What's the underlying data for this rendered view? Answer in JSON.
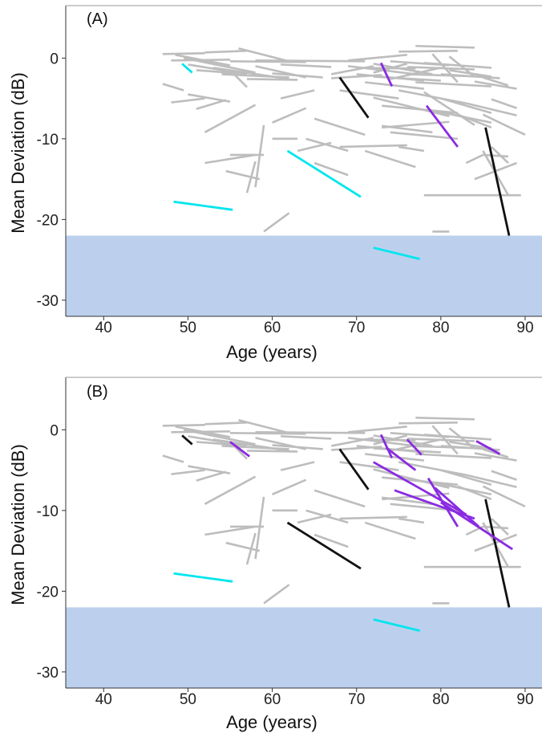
{
  "colors": {
    "gray": "#bdbdbd",
    "cyan": "#00e5ee",
    "purple": "#8a2be2",
    "black": "#111111",
    "band": "#bcd0ee"
  },
  "chart_data": [
    {
      "type": "line",
      "panel_label": "(A)",
      "xlabel": "Age (years)",
      "ylabel": "Mean Deviation (dB)",
      "xlim": [
        35.5,
        92
      ],
      "ylim": [
        -32,
        6.5
      ],
      "xticks": [
        "40",
        "50",
        "60",
        "70",
        "80",
        "90"
      ],
      "yticks": [
        "0",
        "-10",
        "-20",
        "-30"
      ],
      "shaded_band": [
        -32,
        -22
      ],
      "gray_segments": [
        [
          47,
          0.5,
          52,
          0.6
        ],
        [
          48,
          -0.3,
          55,
          -0.2
        ],
        [
          48.5,
          0.4,
          55,
          -0.9
        ],
        [
          49.5,
          0,
          58,
          -1.8
        ],
        [
          50,
          -0.8,
          57,
          -2
        ],
        [
          51,
          -1.5,
          56,
          -1.9
        ],
        [
          52,
          0.7,
          57,
          0.9
        ],
        [
          53,
          -1.2,
          62,
          -2.6
        ],
        [
          54,
          -2,
          62,
          -2.4
        ],
        [
          55,
          -0.4,
          64,
          -0.5
        ],
        [
          56,
          1.2,
          62,
          -0.4
        ],
        [
          57,
          -2.6,
          63,
          -2.7
        ],
        [
          58,
          -0.3,
          71,
          -0.4
        ],
        [
          58,
          -1,
          64,
          -2.4
        ],
        [
          60,
          -1.9,
          66,
          -2.4
        ],
        [
          61,
          -0.8,
          67,
          -1.1
        ],
        [
          47,
          -3.2,
          49.5,
          -4
        ],
        [
          48,
          -5.5,
          52,
          -5
        ],
        [
          50,
          -4.5,
          55,
          -5.4
        ],
        [
          51,
          -6.3,
          54.5,
          -5.2
        ],
        [
          55,
          -1.5,
          57,
          -3.6
        ],
        [
          52,
          -9.2,
          58,
          -5.8
        ],
        [
          52,
          -13,
          58,
          -12
        ],
        [
          54.5,
          -14,
          58.5,
          -15
        ],
        [
          55,
          -12,
          59,
          -12
        ],
        [
          57,
          -16.7,
          58,
          -12.8
        ],
        [
          58,
          -16,
          59,
          -8.3
        ],
        [
          60,
          -10,
          63,
          -10
        ],
        [
          59,
          -21.5,
          62,
          -19.2
        ],
        [
          60,
          -8,
          64,
          -6.2
        ],
        [
          61,
          -5,
          65,
          -4
        ],
        [
          63,
          -11.5,
          67,
          -10.5
        ],
        [
          64,
          -10,
          69,
          -11.5
        ],
        [
          65,
          -7.5,
          71,
          -9.5
        ],
        [
          67,
          -2,
          72,
          -1
        ],
        [
          67,
          -2.5,
          73,
          -2.1
        ],
        [
          68,
          -4,
          75,
          -5
        ],
        [
          69,
          -1,
          77,
          -2
        ],
        [
          69,
          -0.3,
          76,
          0.4
        ],
        [
          70,
          -1.2,
          77,
          -1.3
        ],
        [
          70,
          -2,
          78,
          -2.8
        ],
        [
          71,
          -3,
          78,
          -3.8
        ],
        [
          72,
          -0.7,
          79,
          -2
        ],
        [
          72,
          -2.3,
          80,
          -2.8
        ],
        [
          72,
          -1.8,
          76,
          -0.7
        ],
        [
          72,
          -4.9,
          81,
          -7.2
        ],
        [
          73,
          -5.9,
          82,
          -6.8
        ],
        [
          74,
          -2.6,
          80,
          -1.2
        ],
        [
          74,
          -0.4,
          81,
          -0.9
        ],
        [
          75,
          0.8,
          82,
          0.9
        ],
        [
          75,
          -4,
          83,
          -5.6
        ],
        [
          76,
          -2,
          85,
          -2.3
        ],
        [
          76,
          -1.1,
          84,
          -1.4
        ],
        [
          77,
          -3,
          86,
          -3.5
        ],
        [
          73,
          -8.4,
          79,
          -9.2
        ],
        [
          74,
          -9.2,
          82,
          -10
        ],
        [
          77,
          1.5,
          84,
          1.3
        ],
        [
          78,
          -0.6,
          86,
          -1.2
        ],
        [
          78,
          -4.2,
          84,
          -8.3
        ],
        [
          79,
          0.5,
          82,
          -3
        ],
        [
          79,
          -6.5,
          86,
          -8
        ],
        [
          80,
          -2,
          87,
          -2.5
        ],
        [
          80,
          -5,
          86,
          -6.8
        ],
        [
          81,
          -1.5,
          86,
          -2.3
        ],
        [
          81,
          0.2,
          84,
          -2.3
        ],
        [
          82,
          -7,
          86,
          -8.6
        ],
        [
          83,
          -5.6,
          89,
          -7.1
        ],
        [
          84,
          -2.9,
          89,
          -3.8
        ],
        [
          85,
          -7,
          90,
          -9.5
        ],
        [
          85,
          -2.4,
          88,
          -3.4
        ],
        [
          86,
          -5.1,
          89,
          -6.2
        ],
        [
          86,
          -11,
          88,
          -13
        ],
        [
          78,
          -17,
          89.5,
          -17
        ],
        [
          85,
          -12,
          88,
          -12.2
        ],
        [
          84,
          -15,
          89,
          -13
        ],
        [
          85,
          -11.5,
          88,
          -17
        ],
        [
          71,
          -11.5,
          77,
          -13.5
        ],
        [
          65,
          -13,
          69,
          -14.5
        ],
        [
          68,
          -11,
          76,
          -10.8
        ],
        [
          79,
          -21.5,
          81,
          -21.5
        ],
        [
          73,
          -8.6,
          81,
          -7.9
        ],
        [
          75,
          -11,
          78,
          -11.5
        ],
        [
          83,
          -13,
          85,
          -12
        ]
      ],
      "color_segments": [
        {
          "color": "cyan",
          "x1": 49.3,
          "y1": -0.7,
          "x2": 50.5,
          "y2": -1.8
        },
        {
          "color": "cyan",
          "x1": 48.3,
          "y1": -17.8,
          "x2": 55.3,
          "y2": -18.8
        },
        {
          "color": "cyan",
          "x1": 61.8,
          "y1": -11.5,
          "x2": 70.5,
          "y2": -17.2
        },
        {
          "color": "cyan",
          "x1": 72.0,
          "y1": -23.5,
          "x2": 77.5,
          "y2": -24.9
        },
        {
          "color": "purple",
          "x1": 72.9,
          "y1": -0.6,
          "x2": 74.2,
          "y2": -3.5
        },
        {
          "color": "purple",
          "x1": 78.3,
          "y1": -5.9,
          "x2": 82.0,
          "y2": -11.0
        },
        {
          "color": "black",
          "x1": 68.0,
          "y1": -2.4,
          "x2": 71.4,
          "y2": -7.4
        },
        {
          "color": "black",
          "x1": 85.3,
          "y1": -8.6,
          "x2": 88.1,
          "y2": -22.0
        }
      ]
    },
    {
      "type": "line",
      "panel_label": "(B)",
      "xlabel": "Age (years)",
      "ylabel": "Mean Deviation (dB)",
      "xlim": [
        35.5,
        92
      ],
      "ylim": [
        -32,
        6.5
      ],
      "xticks": [
        "40",
        "50",
        "60",
        "70",
        "80",
        "90"
      ],
      "yticks": [
        "0",
        "-10",
        "-20",
        "-30"
      ],
      "shaded_band": [
        -32,
        -22
      ],
      "gray_segments": [
        [
          47,
          0.5,
          52,
          0.6
        ],
        [
          48,
          -0.3,
          55,
          -0.2
        ],
        [
          48.5,
          0.4,
          55,
          -0.9
        ],
        [
          49.5,
          0,
          58,
          -1.8
        ],
        [
          50,
          -0.8,
          57,
          -2
        ],
        [
          51,
          -1.5,
          56,
          -1.9
        ],
        [
          52,
          0.7,
          57,
          0.9
        ],
        [
          53,
          -1.2,
          62,
          -2.6
        ],
        [
          54,
          -2,
          62,
          -2.4
        ],
        [
          55,
          -0.4,
          64,
          -0.5
        ],
        [
          56,
          1.2,
          62,
          -0.4
        ],
        [
          57,
          -2.6,
          63,
          -2.7
        ],
        [
          58,
          -0.3,
          71,
          -0.4
        ],
        [
          58,
          -1,
          64,
          -2.4
        ],
        [
          60,
          -1.9,
          66,
          -2.4
        ],
        [
          61,
          -0.8,
          67,
          -1.1
        ],
        [
          47,
          -3.2,
          49.5,
          -4
        ],
        [
          48,
          -5.5,
          52,
          -5
        ],
        [
          50,
          -4.5,
          55,
          -5.4
        ],
        [
          51,
          -6.3,
          54.5,
          -5.2
        ],
        [
          55,
          -1.5,
          57,
          -3.6
        ],
        [
          52,
          -9.2,
          58,
          -5.8
        ],
        [
          52,
          -13,
          58,
          -12
        ],
        [
          54.5,
          -14,
          58.5,
          -15
        ],
        [
          55,
          -12,
          59,
          -12
        ],
        [
          57,
          -16.7,
          58,
          -12.8
        ],
        [
          58,
          -16,
          59,
          -8.3
        ],
        [
          60,
          -10,
          63,
          -10
        ],
        [
          59,
          -21.5,
          62,
          -19.2
        ],
        [
          60,
          -8,
          64,
          -6.2
        ],
        [
          61,
          -5,
          65,
          -4
        ],
        [
          63,
          -11.5,
          67,
          -10.5
        ],
        [
          64,
          -10,
          69,
          -11.5
        ],
        [
          65,
          -7.5,
          71,
          -9.5
        ],
        [
          67,
          -2,
          72,
          -1
        ],
        [
          67,
          -2.5,
          73,
          -2.1
        ],
        [
          68,
          -4,
          75,
          -5
        ],
        [
          69,
          -1,
          77,
          -2
        ],
        [
          69,
          -0.3,
          76,
          0.4
        ],
        [
          70,
          -1.2,
          77,
          -1.3
        ],
        [
          70,
          -2,
          78,
          -2.8
        ],
        [
          71,
          -3,
          78,
          -3.8
        ],
        [
          72,
          -0.7,
          79,
          -2
        ],
        [
          72,
          -2.3,
          80,
          -2.8
        ],
        [
          72,
          -1.8,
          76,
          -0.7
        ],
        [
          72,
          -4.9,
          81,
          -7.2
        ],
        [
          73,
          -5.9,
          82,
          -6.8
        ],
        [
          74,
          -2.6,
          80,
          -1.2
        ],
        [
          74,
          -0.4,
          81,
          -0.9
        ],
        [
          75,
          0.8,
          82,
          0.9
        ],
        [
          75,
          -4,
          83,
          -5.6
        ],
        [
          76,
          -2,
          85,
          -2.3
        ],
        [
          76,
          -1.1,
          84,
          -1.4
        ],
        [
          77,
          -3,
          86,
          -3.5
        ],
        [
          73,
          -8.4,
          79,
          -9.2
        ],
        [
          74,
          -9.2,
          82,
          -10
        ],
        [
          77,
          1.5,
          84,
          1.3
        ],
        [
          78,
          -0.6,
          86,
          -1.2
        ],
        [
          79,
          0.5,
          82,
          -3
        ],
        [
          79,
          -6.5,
          86,
          -8
        ],
        [
          80,
          -2,
          87,
          -2.5
        ],
        [
          80,
          -5,
          86,
          -6.8
        ],
        [
          81,
          -1.5,
          86,
          -2.3
        ],
        [
          81,
          0.2,
          84,
          -2.3
        ],
        [
          82,
          -7,
          86,
          -8.6
        ],
        [
          83,
          -5.6,
          89,
          -7.1
        ],
        [
          84,
          -2.9,
          89,
          -3.8
        ],
        [
          85,
          -7,
          90,
          -9.5
        ],
        [
          85,
          -2.4,
          88,
          -3.4
        ],
        [
          86,
          -5.1,
          89,
          -6.2
        ],
        [
          86,
          -11,
          88,
          -13
        ],
        [
          78,
          -17,
          89.5,
          -17
        ],
        [
          85,
          -12,
          88,
          -12.2
        ],
        [
          84,
          -15,
          89,
          -13
        ],
        [
          85,
          -11.5,
          88,
          -17
        ],
        [
          71,
          -11.5,
          77,
          -13.5
        ],
        [
          65,
          -13,
          69,
          -14.5
        ],
        [
          68,
          -11,
          76,
          -10.8
        ],
        [
          79,
          -21.5,
          81,
          -21.5
        ],
        [
          73,
          -8.6,
          81,
          -7.9
        ],
        [
          75,
          -11,
          78,
          -11.5
        ],
        [
          83,
          -13,
          85,
          -12
        ]
      ],
      "color_segments": [
        {
          "color": "black",
          "x1": 49.3,
          "y1": -0.7,
          "x2": 50.5,
          "y2": -1.8
        },
        {
          "color": "purple",
          "x1": 55.0,
          "y1": -1.5,
          "x2": 57.3,
          "y2": -3.3
        },
        {
          "color": "cyan",
          "x1": 48.3,
          "y1": -17.8,
          "x2": 55.3,
          "y2": -18.8
        },
        {
          "color": "black",
          "x1": 61.8,
          "y1": -11.5,
          "x2": 70.5,
          "y2": -17.2
        },
        {
          "color": "cyan",
          "x1": 72.0,
          "y1": -23.5,
          "x2": 77.5,
          "y2": -24.9
        },
        {
          "color": "black",
          "x1": 68.0,
          "y1": -2.4,
          "x2": 71.4,
          "y2": -7.4
        },
        {
          "color": "black",
          "x1": 85.3,
          "y1": -8.6,
          "x2": 88.1,
          "y2": -22.0
        },
        {
          "color": "purple",
          "x1": 72.9,
          "y1": -0.6,
          "x2": 74.2,
          "y2": -3.5
        },
        {
          "color": "purple",
          "x1": 73.5,
          "y1": -2.2,
          "x2": 77.0,
          "y2": -5.0
        },
        {
          "color": "purple",
          "x1": 76.0,
          "y1": -1.2,
          "x2": 77.7,
          "y2": -3.1
        },
        {
          "color": "purple",
          "x1": 72.0,
          "y1": -4.0,
          "x2": 83.0,
          "y2": -10.5
        },
        {
          "color": "purple",
          "x1": 74.5,
          "y1": -7.5,
          "x2": 84.0,
          "y2": -11.0
        },
        {
          "color": "purple",
          "x1": 78.5,
          "y1": -6.0,
          "x2": 82.0,
          "y2": -12.0
        },
        {
          "color": "purple",
          "x1": 79.3,
          "y1": -7.2,
          "x2": 84.5,
          "y2": -12.0
        },
        {
          "color": "purple",
          "x1": 80.0,
          "y1": -9.0,
          "x2": 88.5,
          "y2": -14.8
        },
        {
          "color": "purple",
          "x1": 84.2,
          "y1": -1.4,
          "x2": 87.0,
          "y2": -3.0
        }
      ]
    }
  ]
}
